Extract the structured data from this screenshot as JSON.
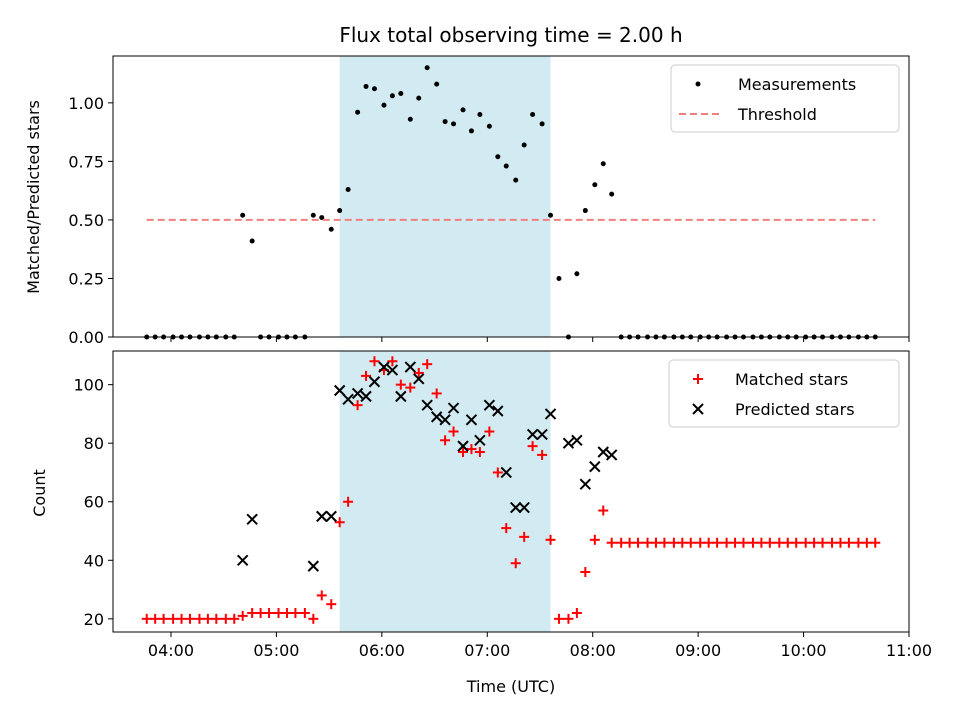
{
  "chart_data": [
    {
      "type": "scatter",
      "title": "Flux total observing time = 2.00 h",
      "ylabel": "Matched/Predicted stars",
      "xlabel": "",
      "x_unit": "hours UTC",
      "xlim": [
        3.45,
        11.0
      ],
      "ylim": [
        0.0,
        1.2
      ],
      "yticks": [
        0.0,
        0.25,
        0.5,
        0.75,
        1.0
      ],
      "ytick_labels": [
        "0.00",
        "0.25",
        "0.50",
        "0.75",
        "1.00"
      ],
      "shaded_span": [
        5.6,
        7.6
      ],
      "shaded_color": "#add8e6",
      "legend_position": "upper right",
      "series": [
        {
          "name": "Measurements",
          "type": "scatter",
          "color": "#000000",
          "x": [
            3.77,
            3.85,
            3.93,
            4.02,
            4.1,
            4.18,
            4.27,
            4.35,
            4.43,
            4.52,
            4.6,
            4.68,
            4.77,
            4.85,
            4.93,
            5.02,
            5.1,
            5.18,
            5.27,
            5.35,
            5.43,
            5.52,
            5.6,
            5.68,
            5.77,
            5.85,
            5.93,
            6.02,
            6.1,
            6.18,
            6.27,
            6.35,
            6.43,
            6.52,
            6.6,
            6.68,
            6.77,
            6.85,
            6.93,
            7.02,
            7.1,
            7.18,
            7.27,
            7.35,
            7.43,
            7.52,
            7.6,
            7.68,
            7.77,
            7.85,
            7.93,
            8.02,
            8.1,
            8.18,
            8.27,
            8.35,
            8.43,
            8.52,
            8.6,
            8.68,
            8.77,
            8.85,
            8.93,
            9.02,
            9.1,
            9.18,
            9.27,
            9.35,
            9.43,
            9.52,
            9.6,
            9.68,
            9.77,
            9.85,
            9.93,
            10.02,
            10.1,
            10.18,
            10.27,
            10.35,
            10.43,
            10.52,
            10.6,
            10.68
          ],
          "y": [
            0,
            0,
            0,
            0,
            0,
            0,
            0,
            0,
            0,
            0,
            0,
            0.52,
            0.41,
            0,
            0,
            0,
            0,
            0,
            0,
            0.52,
            0.51,
            0.46,
            0.54,
            0.63,
            0.96,
            1.07,
            1.06,
            0.99,
            1.03,
            1.04,
            0.93,
            1.02,
            1.15,
            1.08,
            0.92,
            0.91,
            0.97,
            0.88,
            0.95,
            0.9,
            0.77,
            0.73,
            0.67,
            0.82,
            0.95,
            0.91,
            0.52,
            0.25,
            0,
            0.27,
            0.54,
            0.65,
            0.74,
            0.61,
            0,
            0,
            0,
            0,
            0,
            0,
            0,
            0,
            0,
            0,
            0,
            0,
            0,
            0,
            0,
            0,
            0,
            0,
            0,
            0,
            0,
            0,
            0,
            0,
            0,
            0,
            0,
            0,
            0,
            0
          ]
        },
        {
          "name": "Threshold",
          "type": "line",
          "style": "dashed",
          "color": "#f08080",
          "x": [
            3.77,
            10.68
          ],
          "y": [
            0.5,
            0.5
          ]
        }
      ]
    },
    {
      "type": "scatter",
      "title": "",
      "ylabel": "Count",
      "xlabel": "Time (UTC)",
      "x_unit": "hours UTC",
      "xlim": [
        3.45,
        11.0
      ],
      "xticks": [
        4,
        5,
        6,
        7,
        8,
        9,
        10,
        11
      ],
      "xtick_labels": [
        "04:00",
        "05:00",
        "06:00",
        "07:00",
        "08:00",
        "09:00",
        "10:00",
        "11:00"
      ],
      "ylim": [
        15.5,
        111.5
      ],
      "yticks": [
        20,
        40,
        60,
        80,
        100
      ],
      "ytick_labels": [
        "20",
        "40",
        "60",
        "80",
        "100"
      ],
      "shaded_span": [
        5.6,
        7.6
      ],
      "shaded_color": "#add8e6",
      "legend_position": "upper right",
      "series": [
        {
          "name": "Matched stars",
          "type": "scatter",
          "marker": "+",
          "color": "#ff0000",
          "x": [
            3.77,
            3.85,
            3.93,
            4.02,
            4.1,
            4.18,
            4.27,
            4.35,
            4.43,
            4.52,
            4.6,
            4.68,
            4.77,
            4.85,
            4.93,
            5.02,
            5.1,
            5.18,
            5.27,
            5.35,
            5.43,
            5.52,
            5.6,
            5.68,
            5.77,
            5.85,
            5.93,
            6.02,
            6.1,
            6.18,
            6.27,
            6.35,
            6.43,
            6.52,
            6.6,
            6.68,
            6.77,
            6.85,
            6.93,
            7.02,
            7.1,
            7.18,
            7.27,
            7.35,
            7.43,
            7.52,
            7.6,
            7.68,
            7.77,
            7.85,
            7.93,
            8.02,
            8.1,
            8.18,
            8.27,
            8.35,
            8.43,
            8.52,
            8.6,
            8.68,
            8.77,
            8.85,
            8.93,
            9.02,
            9.1,
            9.18,
            9.27,
            9.35,
            9.43,
            9.52,
            9.6,
            9.68,
            9.77,
            9.85,
            9.93,
            10.02,
            10.1,
            10.18,
            10.27,
            10.35,
            10.43,
            10.52,
            10.6,
            10.68
          ],
          "y": [
            20,
            20,
            20,
            20,
            20,
            20,
            20,
            20,
            20,
            20,
            20,
            21,
            22,
            22,
            22,
            22,
            22,
            22,
            22,
            20,
            28,
            25,
            53,
            60,
            93,
            103,
            108,
            105,
            108,
            100,
            99,
            104,
            107,
            97,
            81,
            84,
            77,
            78,
            77,
            84,
            70,
            51,
            39,
            48,
            79,
            76,
            47,
            20,
            20,
            22,
            36,
            47,
            57,
            46,
            46,
            46,
            46,
            46,
            46,
            46,
            46,
            46,
            46,
            46,
            46,
            46,
            46,
            46,
            46,
            46,
            46,
            46,
            46,
            46,
            46,
            46,
            46,
            46,
            46,
            46,
            46,
            46,
            46,
            46
          ]
        },
        {
          "name": "Predicted stars",
          "type": "scatter",
          "marker": "x",
          "color": "#000000",
          "x": [
            4.68,
            4.77,
            5.35,
            5.43,
            5.52,
            5.6,
            5.68,
            5.77,
            5.85,
            5.93,
            6.02,
            6.1,
            6.18,
            6.27,
            6.35,
            6.43,
            6.52,
            6.6,
            6.68,
            6.77,
            6.85,
            6.93,
            7.02,
            7.1,
            7.18,
            7.27,
            7.35,
            7.43,
            7.52,
            7.6,
            7.77,
            7.85,
            7.93,
            8.02,
            8.1,
            8.18
          ],
          "y": [
            40,
            54,
            38,
            55,
            55,
            98,
            95,
            97,
            96,
            101,
            106,
            105,
            96,
            106,
            102,
            93,
            89,
            88,
            92,
            79,
            88,
            81,
            93,
            91,
            70,
            58,
            58,
            83,
            83,
            90,
            80,
            81,
            66,
            72,
            77,
            76
          ]
        }
      ]
    }
  ]
}
